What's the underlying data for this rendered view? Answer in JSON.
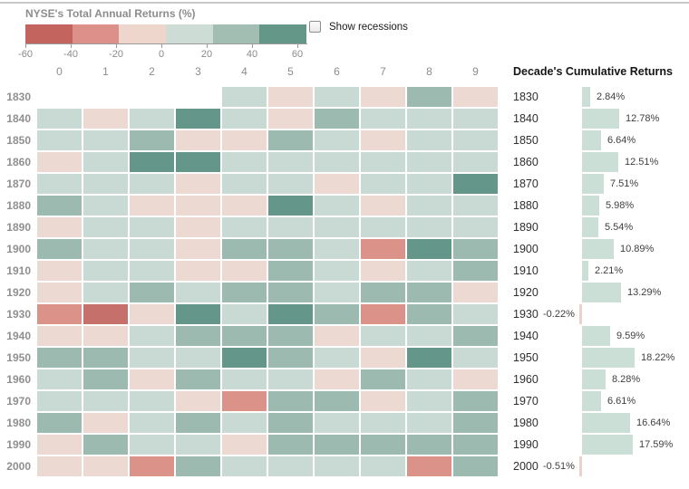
{
  "legend": {
    "title": "NYSE's Total Annual Returns (%)",
    "swatches": [
      "#c4645f",
      "#dd9089",
      "#eed6cd",
      "#cdddd6",
      "#a2bdb1",
      "#649788"
    ],
    "tick_labels": [
      "-60",
      "-40",
      "-20",
      "0",
      "20",
      "40",
      "60"
    ]
  },
  "controls": {
    "show_recessions_label": "Show recessions",
    "show_recessions_checked": false
  },
  "right_panel": {
    "title": "Decade's Cumulative Returns"
  },
  "colors": {
    "heatmap_bins": [
      {
        "max": -40,
        "color": "#c5706a"
      },
      {
        "max": -20,
        "color": "#db9289"
      },
      {
        "max": 0,
        "color": "#ecd9d2"
      },
      {
        "max": 20,
        "color": "#c9d9d3"
      },
      {
        "max": 40,
        "color": "#9dbab0"
      },
      {
        "max": 100,
        "color": "#64978a"
      }
    ],
    "bar_positive": "#ccdfd7",
    "bar_negative": "#edd2cb"
  },
  "chart_data": [
    {
      "type": "heatmap",
      "title": "NYSE's Total Annual Returns (%)",
      "x_tick_labels": [
        "0",
        "1",
        "2",
        "3",
        "4",
        "5",
        "6",
        "7",
        "8",
        "9"
      ],
      "y_tick_labels": [
        "1830",
        "1840",
        "1850",
        "1860",
        "1870",
        "1880",
        "1890",
        "1900",
        "1910",
        "1920",
        "1930",
        "1940",
        "1950",
        "1960",
        "1970",
        "1980",
        "1990",
        "2000"
      ],
      "color_scale": {
        "min": -60,
        "max": 60,
        "tick_values": [
          -60,
          -40,
          -20,
          0,
          20,
          40,
          60
        ]
      },
      "values": [
        [
          null,
          null,
          null,
          null,
          10,
          -10,
          10,
          -10,
          30,
          -10
        ],
        [
          10,
          -10,
          10,
          50,
          10,
          -10,
          30,
          10,
          10,
          10
        ],
        [
          10,
          10,
          30,
          -10,
          -10,
          30,
          10,
          -10,
          10,
          10
        ],
        [
          -10,
          10,
          50,
          50,
          10,
          10,
          10,
          10,
          10,
          10
        ],
        [
          10,
          10,
          10,
          -10,
          10,
          10,
          -10,
          10,
          10,
          50
        ],
        [
          30,
          10,
          -10,
          -10,
          -10,
          50,
          10,
          -10,
          10,
          10
        ],
        [
          -10,
          10,
          10,
          -10,
          10,
          10,
          10,
          10,
          10,
          10
        ],
        [
          30,
          10,
          10,
          -10,
          30,
          30,
          10,
          -30,
          50,
          30
        ],
        [
          -10,
          10,
          10,
          -10,
          -10,
          30,
          10,
          -10,
          10,
          30
        ],
        [
          -10,
          10,
          30,
          10,
          30,
          30,
          10,
          30,
          30,
          -10
        ],
        [
          -30,
          -50,
          -10,
          50,
          10,
          50,
          30,
          -30,
          30,
          10
        ],
        [
          -10,
          -10,
          10,
          30,
          30,
          30,
          -10,
          10,
          10,
          30
        ],
        [
          30,
          30,
          10,
          10,
          50,
          30,
          10,
          -10,
          50,
          10
        ],
        [
          10,
          30,
          -10,
          30,
          10,
          10,
          -10,
          30,
          10,
          -10
        ],
        [
          10,
          10,
          10,
          -10,
          -30,
          30,
          30,
          -10,
          10,
          30
        ],
        [
          30,
          -10,
          10,
          30,
          10,
          30,
          10,
          10,
          10,
          30
        ],
        [
          -10,
          30,
          10,
          10,
          -10,
          30,
          30,
          30,
          30,
          30
        ],
        [
          -10,
          -10,
          -30,
          30,
          10,
          10,
          10,
          10,
          -30,
          30
        ]
      ]
    },
    {
      "type": "bar",
      "orientation": "horizontal",
      "title": "Decade's Cumulative Returns",
      "categories": [
        "1830",
        "1840",
        "1850",
        "1860",
        "1870",
        "1880",
        "1890",
        "1900",
        "1910",
        "1920",
        "1930",
        "1940",
        "1950",
        "1960",
        "1970",
        "1980",
        "1990",
        "2000"
      ],
      "values": [
        2.84,
        12.78,
        6.64,
        12.51,
        7.51,
        5.98,
        5.54,
        10.89,
        2.21,
        13.29,
        -0.22,
        9.59,
        18.22,
        8.28,
        6.61,
        16.64,
        17.59,
        -0.51
      ],
      "value_labels": [
        "2.84%",
        "12.78%",
        "6.64%",
        "12.51%",
        "7.51%",
        "5.98%",
        "5.54%",
        "10.89%",
        "2.21%",
        "13.29%",
        "-0.22%",
        "9.59%",
        "18.22%",
        "8.28%",
        "6.61%",
        "16.64%",
        "17.59%",
        "-0.51%"
      ]
    }
  ]
}
